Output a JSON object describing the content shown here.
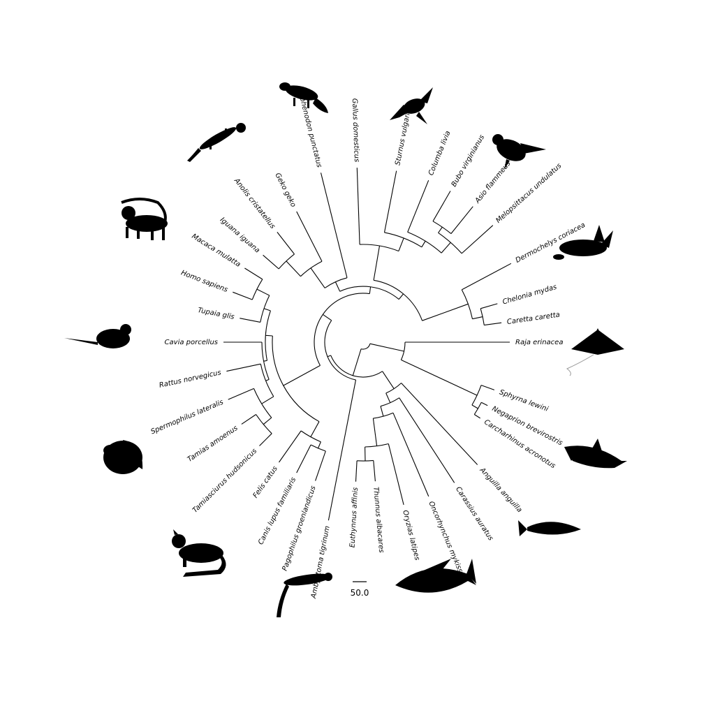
{
  "tree": {
    "taxa": [
      "Raja erinacea",
      "Sphyrna lewini",
      "Negaprion brevirostris",
      "Carcharhinus acronotus",
      "Anguilla anguilla",
      "Carassius auratus",
      "Oncorhynchus mykiss",
      "Oryzias latipes",
      "Thunnus albacares",
      "Euthynnus affinis",
      "Ambystoma tigrinum",
      "Pagophilus groenlandicus",
      "Canis lupus familiaris",
      "Felis catus",
      "Tamiasciurus hudsonicus",
      "Tamias amoenus",
      "Spermophilus lateralis",
      "Rattus norvegicus",
      "Cavia porcellus",
      "Tupaia glis",
      "Homo sapiens",
      "Macaca mulatta",
      "Iguana iguana",
      "Anolis cristatellus",
      "Geko geko",
      "Sphenodon punctatus",
      "Gallus domesticus",
      "Sturnus vulgaris",
      "Columba livia",
      "Bubo virginianus",
      "Asio flammeus",
      "Melopsittacus undulatus",
      "Dermochelys coriacea",
      "Chelonia mydas",
      "Caretta caretta"
    ],
    "scale_bar": {
      "label": "50.0",
      "value": 50.0
    }
  },
  "silhouettes": [
    "tuatara-icon",
    "pigeon-icon",
    "owl-icon",
    "sea-turtle-icon",
    "ray-icon",
    "shark-icon",
    "fish-icon",
    "tuna-icon",
    "salamander-icon",
    "cat-icon",
    "squirrel-icon",
    "rat-icon",
    "monkey-icon",
    "gecko-icon"
  ]
}
